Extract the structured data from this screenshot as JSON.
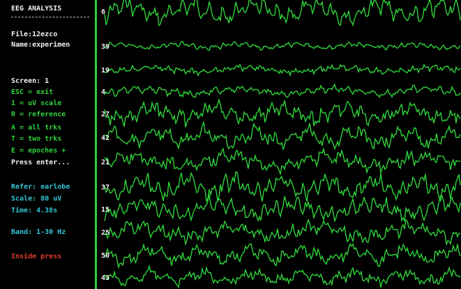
{
  "app": {
    "title": "EEG ANALYSIS",
    "file_line": "File:12ezco",
    "name_line": "Name:experimen"
  },
  "menu": {
    "screen_line": "Screen: 1",
    "items": [
      {
        "key": "ESC",
        "label": "ESC = exit"
      },
      {
        "key": "1",
        "label": "1 = uV scale"
      },
      {
        "key": "R",
        "label": "R = reference"
      },
      {
        "key": "A",
        "label": "A = all trks"
      },
      {
        "key": "T",
        "label": "T = two trks"
      },
      {
        "key": "E",
        "label": "E = epoches +"
      }
    ],
    "prompt": "Press enter..."
  },
  "status": {
    "refer": "Refer: earlobe",
    "scale": "Scale: 80 uV",
    "time": "Time: 4.38s",
    "band": "Band: 1-30 Hz",
    "warning": "Inside press"
  },
  "channels": [
    {
      "label": "6"
    },
    {
      "label": "39"
    },
    {
      "label": "19"
    },
    {
      "label": "4"
    },
    {
      "label": "27"
    },
    {
      "label": "42"
    },
    {
      "label": "21"
    },
    {
      "label": "37"
    },
    {
      "label": "15"
    },
    {
      "label": "25"
    },
    {
      "label": "50"
    },
    {
      "label": "43"
    }
  ],
  "colors": {
    "trace": "#2fd23a",
    "background": "#000000",
    "menu_text": "#f2f2f2",
    "menu_key": "#2fd23a",
    "status": "#33c6d6",
    "warning": "#e33b2b"
  }
}
